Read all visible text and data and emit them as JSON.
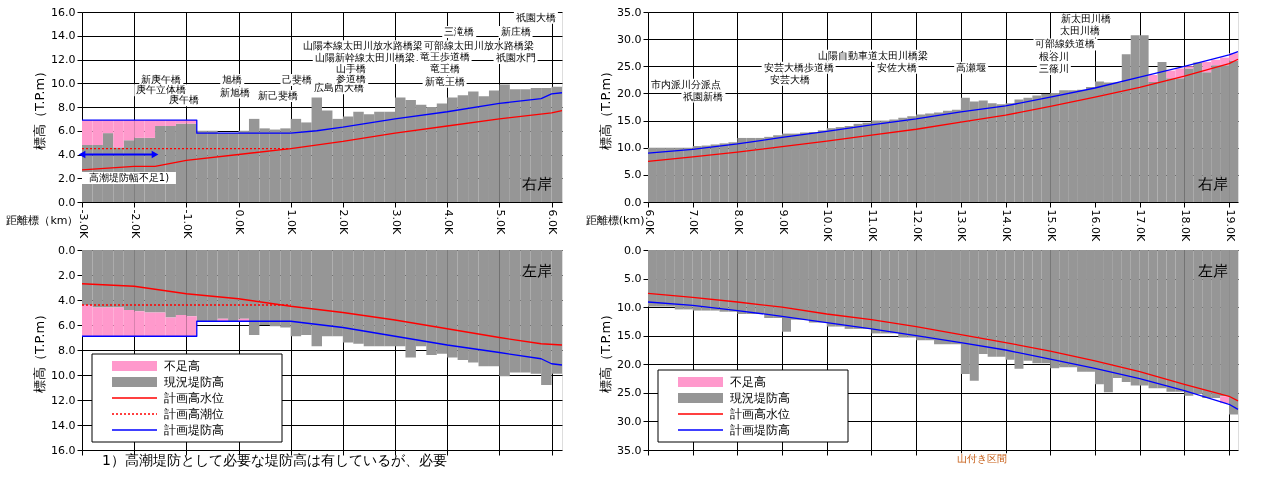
{
  "chart_data": [
    {
      "type": "bar",
      "stacked": true,
      "grid": true,
      "xlabel": "距離標（km）",
      "ylabel": "標高（T.P.m）",
      "x": [
        -2.9,
        -2.7,
        -2.5,
        -2.3,
        -2.1,
        -1.9,
        -1.7,
        -1.5,
        -1.3,
        -1.1,
        -0.9,
        -0.7,
        -0.5,
        -0.3,
        -0.1,
        0.1,
        0.3,
        0.5,
        0.7,
        0.9,
        1.1,
        1.3,
        1.5,
        1.7,
        1.9,
        2.1,
        2.3,
        2.5,
        2.7,
        2.9,
        3.1,
        3.3,
        3.5,
        3.7,
        3.9,
        4.1,
        4.3,
        4.5,
        4.7,
        4.9,
        5.1,
        5.3,
        5.5,
        5.7,
        5.9,
        6.1
      ],
      "xlim": [
        -3.0,
        6.2
      ],
      "xticks": [
        {
          "value": -3,
          "label": "-3.0K"
        },
        {
          "value": -2,
          "label": "-2.0K"
        },
        {
          "value": -1,
          "label": "-1.0K"
        },
        {
          "value": 0,
          "label": "0.0K"
        },
        {
          "value": 1,
          "label": "1.0K"
        },
        {
          "value": 2,
          "label": "2.0K"
        },
        {
          "value": 3,
          "label": "3.0K"
        },
        {
          "value": 4,
          "label": "4.0K"
        },
        {
          "value": 5,
          "label": "5.0K"
        },
        {
          "value": 6,
          "label": "6.0K"
        }
      ],
      "ylim": [
        0,
        16
      ],
      "yticks": [
        {
          "value": 0,
          "label": "0.0"
        },
        {
          "value": 2,
          "label": "2.0"
        },
        {
          "value": 4,
          "label": "4.0"
        },
        {
          "value": 6,
          "label": "6.0"
        },
        {
          "value": 8,
          "label": "8.0"
        },
        {
          "value": 10,
          "label": "10.0"
        },
        {
          "value": 12,
          "label": "12.0"
        },
        {
          "value": 14,
          "label": "14.0"
        },
        {
          "value": 16,
          "label": "16.0"
        }
      ],
      "series": [
        {
          "type": "bar",
          "color": "#969696",
          "values": [
            4.8,
            4.8,
            5.8,
            4.6,
            5.2,
            5.4,
            5.4,
            6.4,
            6.4,
            6.6,
            6.6,
            6.0,
            6.0,
            5.8,
            5.8,
            6.0,
            7.0,
            6.2,
            6.1,
            6.2,
            7.0,
            6.7,
            8.8,
            7.7,
            7.0,
            7.2,
            7.6,
            7.4,
            7.6,
            7.6,
            8.8,
            8.6,
            8.2,
            8.0,
            8.3,
            8.8,
            9.0,
            9.3,
            8.9,
            9.4,
            9.9,
            9.5,
            9.5,
            9.6,
            9.6,
            9.7
          ]
        },
        {
          "type": "bar",
          "color": "#ff99cc",
          "values": [
            2.1,
            2.1,
            1.1,
            2.3,
            1.7,
            1.5,
            1.5,
            0.5,
            0.5,
            0.3,
            0.3,
            null,
            null,
            null,
            null,
            null,
            null,
            null,
            null,
            null,
            null,
            null,
            null,
            null,
            null,
            null,
            null,
            null,
            null,
            null,
            null,
            null,
            null,
            null,
            null,
            null,
            null,
            null,
            null,
            null,
            null,
            null,
            null,
            null,
            null,
            null
          ]
        },
        {
          "type": "line",
          "color": "#ff0000",
          "x": [
            -3.0,
            -2.0,
            -1.6,
            -1.0,
            0.0,
            1.0,
            2.0,
            3.0,
            4.0,
            5.0,
            6.0,
            6.2
          ],
          "values": [
            2.7,
            3.0,
            3.0,
            3.5,
            4.0,
            4.5,
            5.1,
            5.8,
            6.4,
            7.0,
            7.5,
            7.7
          ]
        },
        {
          "type": "line",
          "color": "#ff0000",
          "line_style": "dotted",
          "x": [
            -3.0,
            1.0
          ],
          "values": [
            4.5,
            4.5
          ]
        },
        {
          "type": "line",
          "color": "#0000ff",
          "x": [
            -3.0,
            -0.8,
            -0.8,
            1.0,
            1.5,
            2.0,
            3.0,
            4.0,
            5.0,
            5.8,
            6.0,
            6.2
          ],
          "values": [
            6.9,
            6.9,
            5.8,
            5.8,
            6.0,
            6.3,
            7.0,
            7.6,
            8.3,
            8.7,
            9.1,
            9.2
          ]
        }
      ],
      "annotations": [
        "右岸",
        "高潮堤防幅不足1)",
        "新庚午橋",
        "庚午立体橋",
        "庚午橋",
        "旭橋",
        "新旭橋",
        "新己斐橋",
        "己斐橋",
        "広島西大橋",
        "参道橋",
        "山手橋",
        "山陽新幹線太田川橋梁",
        "山陽本線太田川放水路橋梁",
        "新竜王橋",
        "竜王橋",
        "竜王歩道橋",
        "可部線太田川放水路橋梁",
        "三滝橋",
        "新庄橋",
        "祇園水門",
        "祇園大橋"
      ]
    },
    {
      "type": "bar",
      "stacked": true,
      "grid": true,
      "xlabel": "距離標(km)",
      "ylabel": "標高（T.P.m）",
      "x": [
        6.1,
        6.3,
        6.5,
        6.7,
        6.9,
        7.1,
        7.3,
        7.5,
        7.7,
        7.9,
        8.1,
        8.3,
        8.5,
        8.7,
        8.9,
        9.1,
        9.3,
        9.5,
        9.7,
        9.9,
        10.1,
        10.3,
        10.5,
        10.7,
        10.9,
        11.1,
        11.3,
        11.5,
        11.7,
        11.9,
        12.1,
        12.3,
        12.5,
        12.7,
        12.9,
        13.1,
        13.3,
        13.5,
        13.7,
        13.9,
        14.1,
        14.3,
        14.5,
        14.7,
        14.9,
        15.1,
        15.3,
        15.5,
        15.7,
        15.9,
        16.1,
        16.3,
        16.5,
        16.7,
        16.9,
        17.1,
        17.3,
        17.5,
        17.7,
        17.9,
        18.1,
        18.3,
        18.5,
        18.7,
        18.9,
        19.1
      ],
      "xlim": [
        6.0,
        19.2
      ],
      "xticks": [
        {
          "value": 6,
          "label": "6.0K"
        },
        {
          "value": 7,
          "label": "7.0K"
        },
        {
          "value": 8,
          "label": "8.0K"
        },
        {
          "value": 9,
          "label": "9.0K"
        },
        {
          "value": 10,
          "label": "10.0K"
        },
        {
          "value": 11,
          "label": "11.0K"
        },
        {
          "value": 12,
          "label": "12.0K"
        },
        {
          "value": 13,
          "label": "13.0K"
        },
        {
          "value": 14,
          "label": "14.0K"
        },
        {
          "value": 15,
          "label": "15.0K"
        },
        {
          "value": 16,
          "label": "16.0K"
        },
        {
          "value": 17,
          "label": "17.0K"
        },
        {
          "value": 18,
          "label": "18.0K"
        },
        {
          "value": 19,
          "label": "19.0K"
        }
      ],
      "ylim": [
        0,
        35
      ],
      "yticks": [
        {
          "value": 0,
          "label": "0.0"
        },
        {
          "value": 5,
          "label": "5.0"
        },
        {
          "value": 10,
          "label": "10.0"
        },
        {
          "value": 15,
          "label": "15.0"
        },
        {
          "value": 20,
          "label": "20.0"
        },
        {
          "value": 25,
          "label": "25.0"
        },
        {
          "value": 30,
          "label": "30.0"
        },
        {
          "value": 35,
          "label": "35.0"
        }
      ],
      "series": [
        {
          "type": "bar",
          "color": "#969696",
          "values": [
            10.0,
            10.0,
            10.0,
            10.0,
            10.0,
            10.3,
            10.4,
            10.6,
            10.8,
            11.0,
            11.8,
            11.8,
            11.8,
            12.0,
            12.3,
            12.6,
            12.6,
            12.8,
            12.9,
            13.2,
            13.6,
            13.8,
            14.0,
            14.4,
            14.6,
            15.0,
            15.0,
            15.2,
            15.5,
            15.8,
            16.1,
            16.3,
            16.5,
            16.8,
            17.0,
            19.2,
            18.5,
            18.7,
            18.2,
            18.0,
            18.2,
            18.9,
            19.2,
            19.6,
            19.9,
            20.1,
            20.6,
            20.6,
            20.7,
            21.2,
            22.2,
            22.0,
            22.0,
            27.2,
            30.7,
            30.7,
            22.1,
            25.8,
            22.8,
            22.8,
            24.6,
            25.7,
            23.9,
            25.2,
            25.2,
            26.0
          ]
        },
        {
          "type": "bar",
          "color": "#ff99cc",
          "values": [
            null,
            null,
            null,
            null,
            null,
            null,
            null,
            null,
            null,
            null,
            null,
            null,
            null,
            null,
            null,
            null,
            null,
            null,
            null,
            null,
            null,
            null,
            null,
            null,
            null,
            null,
            null,
            null,
            null,
            null,
            null,
            null,
            null,
            null,
            null,
            null,
            null,
            null,
            null,
            null,
            null,
            null,
            null,
            null,
            null,
            null,
            null,
            null,
            null,
            null,
            null,
            null,
            null,
            null,
            null,
            null,
            1.3,
            null,
            1.4,
            1.8,
            0.4,
            null,
            1.9,
            1.0,
            1.4,
            1.4
          ]
        },
        {
          "type": "line",
          "color": "#ff0000",
          "x": [
            6,
            7,
            8,
            9,
            10,
            11,
            12,
            13,
            14,
            15,
            16,
            17,
            18,
            19,
            19.2
          ],
          "values": [
            7.5,
            8.3,
            9.2,
            10.2,
            11.2,
            12.3,
            13.4,
            14.7,
            16.0,
            17.6,
            19.3,
            21.1,
            23.2,
            25.5,
            26.3
          ]
        },
        {
          "type": "line",
          "color": "#0000ff",
          "x": [
            6,
            7,
            8,
            9,
            10,
            11,
            12,
            13,
            14,
            15,
            16,
            17,
            18,
            19,
            19.2
          ],
          "values": [
            9.0,
            9.7,
            10.7,
            11.9,
            13.0,
            14.2,
            15.3,
            16.6,
            17.7,
            19.3,
            21.0,
            23.0,
            25.0,
            27.1,
            27.7
          ]
        }
      ],
      "annotations": [
        "右岸",
        "市内派川分派点",
        "祇園新橋",
        "安芸大橋",
        "安芸大橋歩道橋",
        "山陽自動車道太田川橋梁",
        "安佐大橋",
        "高瀬堰",
        "三篠川",
        "根谷川",
        "可部線鉄道橋",
        "太田川橋",
        "新太田川橋"
      ]
    },
    {
      "type": "bar",
      "stacked": true,
      "grid": true,
      "ylabel": "標高（T.P.m）",
      "tick_labels": "y",
      "legend": "bottom left",
      "x": [
        -2.9,
        -2.7,
        -2.5,
        -2.3,
        -2.1,
        -1.9,
        -1.7,
        -1.5,
        -1.3,
        -1.1,
        -0.9,
        -0.7,
        -0.5,
        -0.3,
        -0.1,
        0.1,
        0.3,
        0.5,
        0.7,
        0.9,
        1.1,
        1.3,
        1.5,
        1.7,
        1.9,
        2.1,
        2.3,
        2.5,
        2.7,
        2.9,
        3.1,
        3.3,
        3.5,
        3.7,
        3.9,
        4.1,
        4.3,
        4.5,
        4.7,
        4.9,
        5.1,
        5.3,
        5.5,
        5.7,
        5.9,
        6.1
      ],
      "xlim": [
        -3.0,
        6.2
      ],
      "xticks": [
        -3,
        -2,
        -1,
        0,
        1,
        2,
        3,
        4,
        5,
        6
      ],
      "ylim": [
        16,
        0
      ],
      "yticks": [
        {
          "value": 0,
          "label": "0.0"
        },
        {
          "value": 2,
          "label": "2.0"
        },
        {
          "value": 4,
          "label": "4.0"
        },
        {
          "value": 6,
          "label": "6.0"
        },
        {
          "value": 8,
          "label": "8.0"
        },
        {
          "value": 10,
          "label": "10.0"
        },
        {
          "value": 12,
          "label": "12.0"
        },
        {
          "value": 14,
          "label": "14.0"
        },
        {
          "value": 16,
          "label": "16.0"
        }
      ],
      "series": [
        {
          "name": "現況堤防高",
          "type": "bar",
          "color": "#969696",
          "values": [
            4.4,
            4.6,
            4.6,
            4.6,
            4.8,
            4.9,
            5.0,
            5.0,
            5.4,
            5.2,
            5.3,
            5.7,
            5.7,
            5.5,
            5.7,
            5.5,
            6.8,
            6.0,
            6.1,
            6.2,
            6.9,
            6.8,
            7.7,
            6.9,
            6.9,
            7.4,
            7.5,
            7.7,
            7.7,
            7.7,
            7.7,
            8.6,
            7.7,
            8.4,
            8.3,
            8.6,
            8.8,
            9.0,
            9.3,
            9.3,
            10.1,
            9.8,
            9.8,
            9.9,
            10.8,
            9.9
          ]
        },
        {
          "name": "不足高",
          "type": "bar",
          "color": "#ff99cc",
          "values": [
            2.5,
            2.3,
            2.3,
            2.3,
            2.1,
            2.0,
            1.9,
            1.9,
            1.5,
            1.7,
            1.6,
            null,
            null,
            0.2,
            null,
            0.2,
            null,
            null,
            null,
            null,
            null,
            null,
            null,
            null,
            null,
            null,
            null,
            null,
            null,
            null,
            null,
            null,
            null,
            null,
            null,
            null,
            null,
            null,
            null,
            null,
            null,
            null,
            null,
            null,
            null,
            null
          ]
        },
        {
          "name": "計画高水位",
          "type": "line",
          "color": "#ff0000",
          "x": [
            -3.0,
            -2.0,
            -1.0,
            0.0,
            1.0,
            2.0,
            3.0,
            4.0,
            5.0,
            5.8,
            6.2
          ],
          "values": [
            2.7,
            2.9,
            3.5,
            3.9,
            4.5,
            5.0,
            5.6,
            6.3,
            7.0,
            7.5,
            7.6
          ]
        },
        {
          "name": "計画高潮位",
          "type": "line",
          "color": "#ff0000",
          "line_style": "dotted",
          "x": [
            -3.0,
            1.0
          ],
          "values": [
            4.4,
            4.4
          ]
        },
        {
          "name": "計画堤防高",
          "type": "line",
          "color": "#0000ff",
          "x": [
            -3.0,
            -0.8,
            -0.8,
            1.0,
            2.0,
            3.0,
            4.0,
            5.0,
            5.8,
            6.0,
            6.2
          ],
          "values": [
            6.9,
            6.9,
            5.7,
            5.7,
            6.2,
            6.9,
            7.6,
            8.2,
            8.7,
            9.1,
            9.2
          ]
        }
      ],
      "annotations": [
        "左岸",
        "1）高潮堤防として必要な堤防高は有しているが、必要"
      ]
    },
    {
      "type": "bar",
      "stacked": true,
      "grid": true,
      "ylabel": "標高（T.P.m）",
      "tick_labels": "y",
      "legend": "bottom left",
      "x": [
        6.1,
        6.3,
        6.5,
        6.7,
        6.9,
        7.1,
        7.3,
        7.5,
        7.7,
        7.9,
        8.1,
        8.3,
        8.5,
        8.7,
        8.9,
        9.1,
        9.3,
        9.5,
        9.7,
        9.9,
        10.1,
        10.3,
        10.5,
        10.7,
        10.9,
        11.1,
        11.3,
        11.5,
        11.7,
        11.9,
        12.1,
        12.3,
        12.5,
        12.7,
        12.9,
        13.1,
        13.3,
        13.5,
        13.7,
        13.9,
        14.1,
        14.3,
        14.5,
        14.7,
        14.9,
        15.1,
        15.3,
        15.5,
        15.7,
        15.9,
        16.1,
        16.3,
        16.5,
        16.7,
        16.9,
        17.1,
        17.3,
        17.5,
        17.7,
        17.9,
        18.1,
        18.3,
        18.5,
        18.7,
        18.9,
        19.1
      ],
      "xlim": [
        6.0,
        19.2
      ],
      "xticks": [
        6,
        7,
        8,
        9,
        10,
        11,
        12,
        13,
        14,
        15,
        16,
        17,
        18,
        19
      ],
      "ylim": [
        35,
        0
      ],
      "yticks": [
        {
          "value": 0,
          "label": "0.0"
        },
        {
          "value": 5,
          "label": "5.0"
        },
        {
          "value": 10,
          "label": "10.0"
        },
        {
          "value": 15,
          "label": "15.0"
        },
        {
          "value": 20,
          "label": "20.0"
        },
        {
          "value": 25,
          "label": "25.0"
        },
        {
          "value": 30,
          "label": "30.0"
        },
        {
          "value": 35,
          "label": "35.0"
        }
      ],
      "series": [
        {
          "name": "現況堤防高",
          "type": "bar",
          "color": "#969696",
          "values": [
            9.9,
            9.9,
            9.9,
            10.4,
            10.4,
            10.6,
            10.6,
            10.6,
            10.8,
            10.8,
            11.2,
            11.2,
            11.2,
            11.9,
            11.9,
            14.3,
            12.2,
            12.2,
            12.7,
            12.7,
            13.4,
            13.4,
            13.8,
            13.8,
            13.8,
            14.6,
            14.6,
            14.6,
            15.3,
            15.3,
            15.8,
            15.8,
            16.5,
            16.5,
            16.5,
            21.7,
            22.9,
            18.2,
            18.7,
            18.7,
            19.2,
            20.8,
            19.4,
            19.8,
            19.8,
            20.7,
            20.5,
            20.5,
            21.3,
            21.3,
            23.5,
            24.9,
            22.4,
            23.1,
            23.7,
            23.7,
            24.2,
            24.2,
            24.8,
            24.8,
            25.5,
            25.2,
            25.9,
            25.9,
            25.6,
            28.8
          ]
        },
        {
          "name": "不足高",
          "type": "bar",
          "color": "#ff99cc",
          "values": [
            null,
            null,
            null,
            null,
            null,
            null,
            null,
            null,
            null,
            null,
            null,
            null,
            null,
            null,
            null,
            null,
            null,
            null,
            null,
            null,
            null,
            null,
            null,
            null,
            null,
            null,
            null,
            null,
            null,
            null,
            null,
            null,
            null,
            null,
            null,
            null,
            null,
            null,
            null,
            null,
            null,
            null,
            null,
            null,
            null,
            null,
            null,
            null,
            null,
            null,
            null,
            null,
            null,
            null,
            null,
            null,
            null,
            null,
            null,
            null,
            null,
            null,
            null,
            null,
            1.2,
            null
          ]
        },
        {
          "name": "計画高水位",
          "type": "line",
          "color": "#ff0000",
          "x": [
            6,
            7,
            8,
            9,
            10,
            11,
            12,
            13,
            14,
            15,
            16,
            17,
            18,
            19,
            19.2
          ],
          "values": [
            7.6,
            8.3,
            9.1,
            10.0,
            11.2,
            12.2,
            13.4,
            14.8,
            16.2,
            17.7,
            19.4,
            21.3,
            23.5,
            25.6,
            26.4
          ]
        },
        {
          "name": "計画堤防高",
          "type": "line",
          "color": "#0000ff",
          "x": [
            6,
            7,
            8,
            9,
            10,
            11,
            12,
            13,
            14,
            15,
            16,
            17,
            18,
            19,
            19.2
          ],
          "values": [
            9.1,
            9.7,
            10.6,
            11.6,
            12.7,
            13.8,
            15.0,
            16.2,
            17.5,
            19.1,
            20.7,
            22.5,
            24.6,
            27.0,
            27.9
          ]
        }
      ],
      "annotations": [
        "左岸",
        "山付き区間"
      ]
    }
  ]
}
